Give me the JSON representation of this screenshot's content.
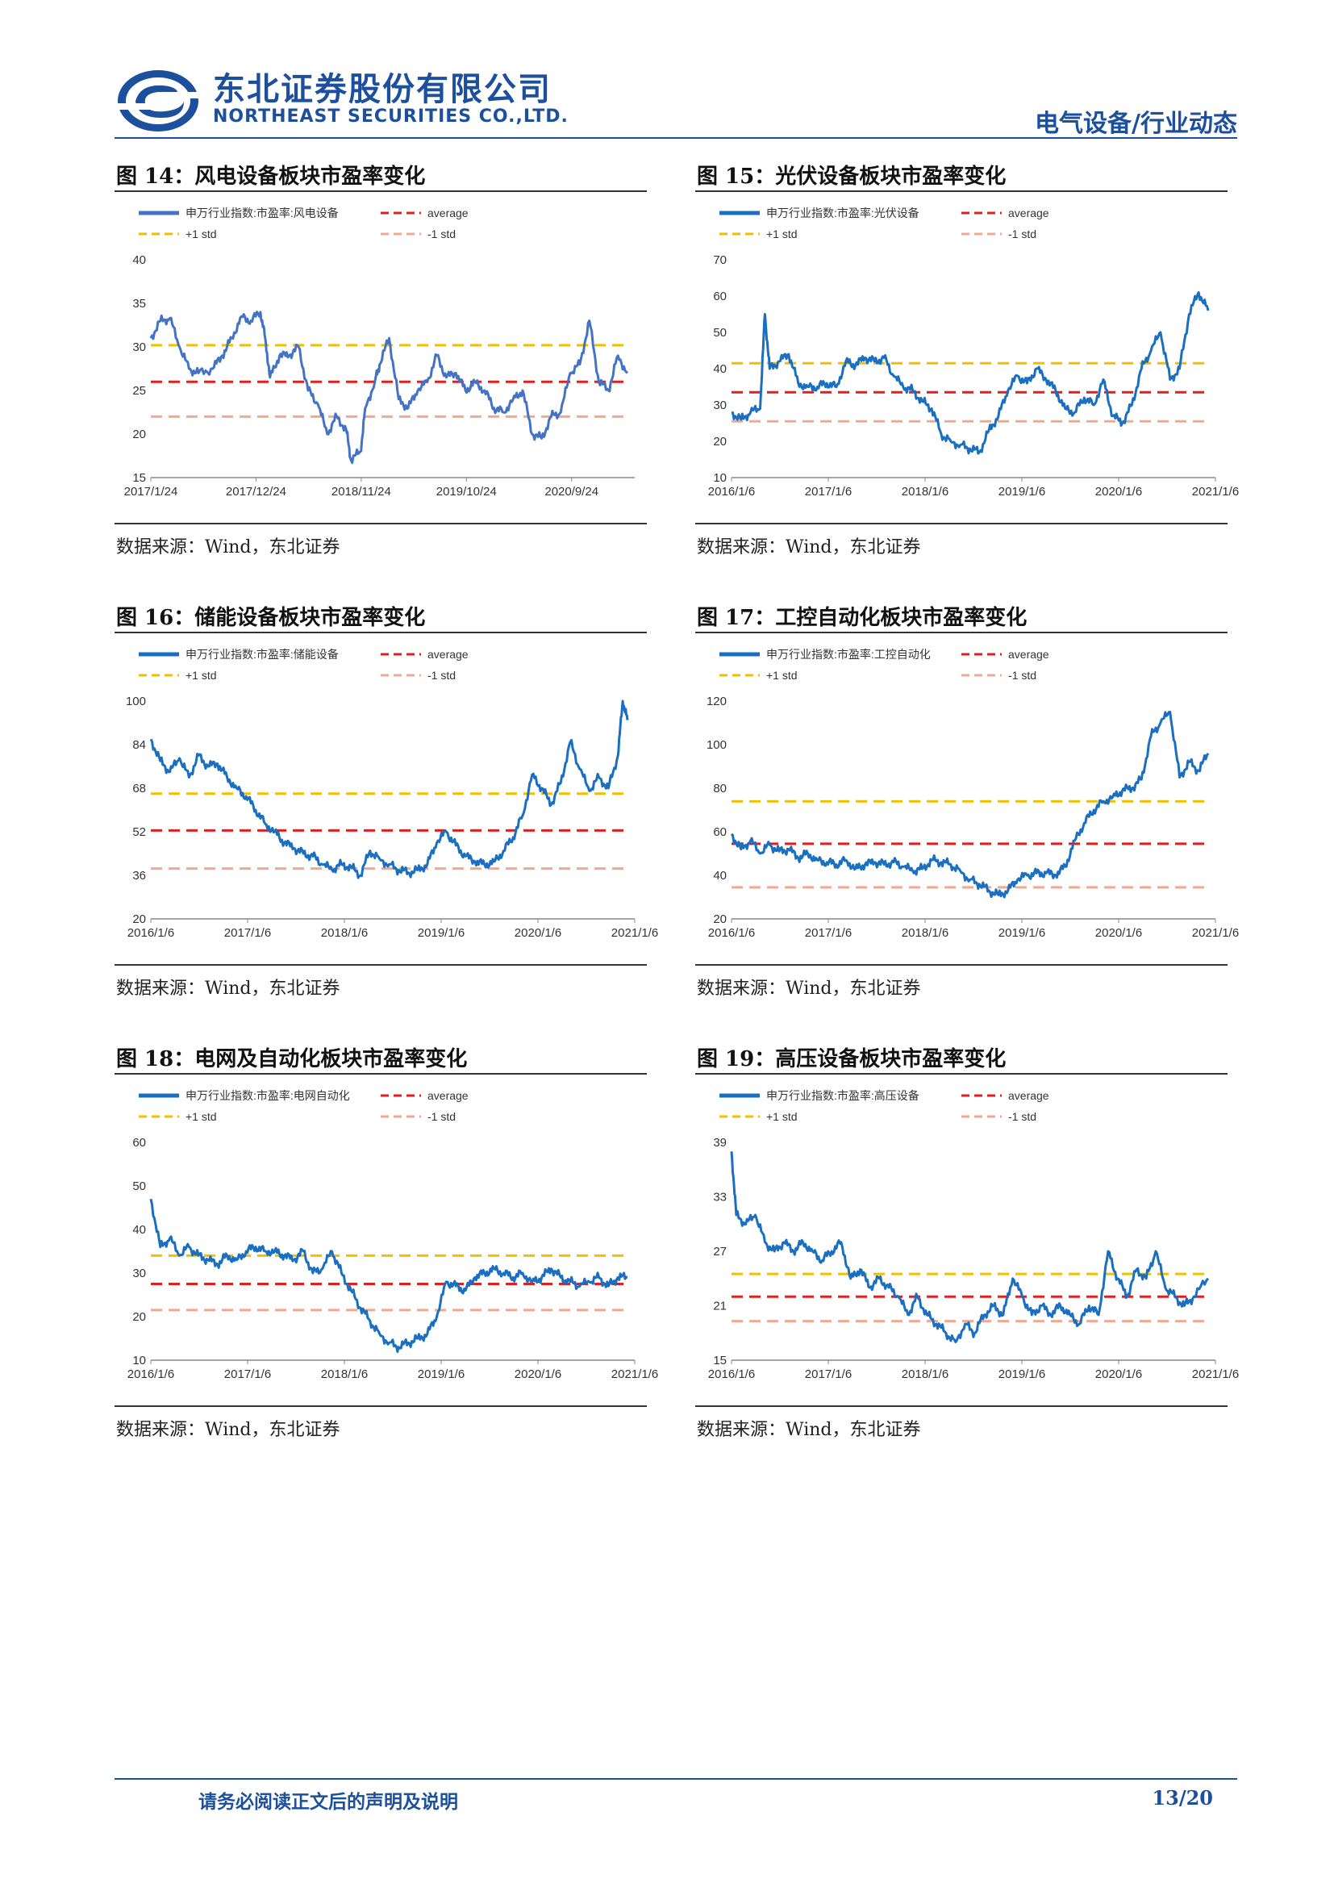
{
  "header": {
    "company_cn": "东北证券股份有限公司",
    "company_en": "NORTHEAST SECURITIES CO.,LTD.",
    "category": "电气设备/行业动态"
  },
  "footer": {
    "disclaimer": "请务必阅读正文后的声明及说明",
    "page": "13/20"
  },
  "colors": {
    "series": "#1a6fc0",
    "series14": "#4472c4",
    "plus_std": "#f0c000",
    "average": "#e02020",
    "minus_std": "#f0a890",
    "brand": "#1c4f9c"
  },
  "figures": [
    {
      "title": "图 14：风电设备板块市盈率变化",
      "source": "数据来源：Wind，东北证券"
    },
    {
      "title": "图 15：光伏设备板块市盈率变化",
      "source": "数据来源：Wind，东北证券"
    },
    {
      "title": "图 16：储能设备板块市盈率变化",
      "source": "数据来源：Wind，东北证券"
    },
    {
      "title": "图 17：工控自动化板块市盈率变化",
      "source": "数据来源：Wind，东北证券"
    },
    {
      "title": "图 18：电网及自动化板块市盈率变化",
      "source": "数据来源：Wind，东北证券"
    },
    {
      "title": "图 19：高压设备板块市盈率变化",
      "source": "数据来源：Wind，东北证券"
    }
  ],
  "chart_data": [
    {
      "type": "line",
      "legend": {
        "series": "申万行业指数:市盈率:风电设备",
        "average": "average",
        "plus_std": "+1 std",
        "minus_std": "-1 std"
      },
      "x_ticks": [
        "2017/1/24",
        "2017/12/24",
        "2018/11/24",
        "2019/10/24",
        "2020/9/24"
      ],
      "y_ticks": [
        "40",
        "35",
        "30",
        "25",
        "20",
        "15"
      ],
      "ylim": [
        15,
        40
      ],
      "average": 26,
      "plus_std": 30.2,
      "minus_std": 22,
      "series_points": [
        [
          0,
          31
        ],
        [
          0.02,
          33
        ],
        [
          0.04,
          33.3
        ],
        [
          0.06,
          30
        ],
        [
          0.08,
          27.5
        ],
        [
          0.1,
          27
        ],
        [
          0.13,
          27.5
        ],
        [
          0.15,
          29
        ],
        [
          0.17,
          31
        ],
        [
          0.19,
          33.5
        ],
        [
          0.21,
          33
        ],
        [
          0.23,
          34
        ],
        [
          0.24,
          31
        ],
        [
          0.25,
          26.5
        ],
        [
          0.27,
          29
        ],
        [
          0.29,
          29
        ],
        [
          0.31,
          30
        ],
        [
          0.33,
          25
        ],
        [
          0.35,
          23.5
        ],
        [
          0.37,
          20
        ],
        [
          0.39,
          22
        ],
        [
          0.41,
          20.5
        ],
        [
          0.42,
          17
        ],
        [
          0.44,
          18
        ],
        [
          0.45,
          23
        ],
        [
          0.47,
          26
        ],
        [
          0.48,
          28
        ],
        [
          0.5,
          31
        ],
        [
          0.52,
          24
        ],
        [
          0.54,
          23
        ],
        [
          0.56,
          25
        ],
        [
          0.58,
          26
        ],
        [
          0.6,
          29
        ],
        [
          0.62,
          26.5
        ],
        [
          0.64,
          27
        ],
        [
          0.66,
          25
        ],
        [
          0.68,
          26
        ],
        [
          0.7,
          25
        ],
        [
          0.72,
          23
        ],
        [
          0.74,
          22.5
        ],
        [
          0.76,
          24
        ],
        [
          0.78,
          25
        ],
        [
          0.8,
          20
        ],
        [
          0.82,
          19.5
        ],
        [
          0.84,
          22
        ],
        [
          0.86,
          22.5
        ],
        [
          0.88,
          27
        ],
        [
          0.9,
          28
        ],
        [
          0.92,
          33
        ],
        [
          0.94,
          26
        ],
        [
          0.96,
          25
        ],
        [
          0.98,
          29
        ],
        [
          1,
          27
        ]
      ]
    },
    {
      "type": "line",
      "legend": {
        "series": "申万行业指数:市盈率:光伏设备",
        "average": "average",
        "plus_std": "+1 std",
        "minus_std": "-1 std"
      },
      "x_ticks": [
        "2016/1/6",
        "2017/1/6",
        "2018/1/6",
        "2019/1/6",
        "2020/1/6",
        "2021/1/6"
      ],
      "y_ticks": [
        "70",
        "60",
        "50",
        "40",
        "30",
        "20",
        "10"
      ],
      "ylim": [
        10,
        70
      ],
      "average": 33.5,
      "plus_std": 41.5,
      "minus_std": 25.5,
      "series_points": [
        [
          0,
          28
        ],
        [
          0.02,
          26
        ],
        [
          0.04,
          28
        ],
        [
          0.06,
          29
        ],
        [
          0.07,
          55
        ],
        [
          0.08,
          40
        ],
        [
          0.1,
          42
        ],
        [
          0.12,
          44
        ],
        [
          0.14,
          36
        ],
        [
          0.16,
          35
        ],
        [
          0.18,
          35
        ],
        [
          0.2,
          36
        ],
        [
          0.22,
          35
        ],
        [
          0.24,
          42
        ],
        [
          0.26,
          41
        ],
        [
          0.28,
          43
        ],
        [
          0.3,
          42
        ],
        [
          0.32,
          43
        ],
        [
          0.34,
          38
        ],
        [
          0.36,
          35
        ],
        [
          0.38,
          34
        ],
        [
          0.4,
          31
        ],
        [
          0.42,
          29
        ],
        [
          0.44,
          22
        ],
        [
          0.46,
          20
        ],
        [
          0.48,
          19
        ],
        [
          0.5,
          18
        ],
        [
          0.52,
          17
        ],
        [
          0.54,
          23
        ],
        [
          0.56,
          27
        ],
        [
          0.58,
          34
        ],
        [
          0.6,
          38
        ],
        [
          0.62,
          36
        ],
        [
          0.64,
          40
        ],
        [
          0.66,
          37
        ],
        [
          0.68,
          34
        ],
        [
          0.7,
          29
        ],
        [
          0.72,
          28
        ],
        [
          0.74,
          32
        ],
        [
          0.76,
          30
        ],
        [
          0.78,
          37
        ],
        [
          0.8,
          27
        ],
        [
          0.82,
          25
        ],
        [
          0.84,
          30
        ],
        [
          0.86,
          40
        ],
        [
          0.88,
          45
        ],
        [
          0.9,
          50
        ],
        [
          0.92,
          37
        ],
        [
          0.94,
          40
        ],
        [
          0.96,
          55
        ],
        [
          0.98,
          61
        ],
        [
          1,
          56
        ]
      ]
    },
    {
      "type": "line",
      "legend": {
        "series": "申万行业指数:市盈率:储能设备",
        "average": "average",
        "plus_std": "+1 std",
        "minus_std": "-1 std"
      },
      "x_ticks": [
        "2016/1/6",
        "2017/1/6",
        "2018/1/6",
        "2019/1/6",
        "2020/1/6",
        "2021/1/6"
      ],
      "y_ticks": [
        "100",
        "84",
        "68",
        "52",
        "36",
        "20"
      ],
      "ylim": [
        20,
        100
      ],
      "average": 52.5,
      "plus_std": 66,
      "minus_std": 38.5,
      "series_points": [
        [
          0,
          86
        ],
        [
          0.02,
          78
        ],
        [
          0.04,
          74
        ],
        [
          0.06,
          79
        ],
        [
          0.08,
          72
        ],
        [
          0.1,
          80
        ],
        [
          0.12,
          76
        ],
        [
          0.14,
          77
        ],
        [
          0.16,
          72
        ],
        [
          0.18,
          68
        ],
        [
          0.2,
          65
        ],
        [
          0.22,
          60
        ],
        [
          0.24,
          55
        ],
        [
          0.26,
          52
        ],
        [
          0.28,
          48
        ],
        [
          0.3,
          46
        ],
        [
          0.32,
          44
        ],
        [
          0.34,
          43
        ],
        [
          0.36,
          40
        ],
        [
          0.38,
          38
        ],
        [
          0.4,
          40
        ],
        [
          0.42,
          39
        ],
        [
          0.44,
          36
        ],
        [
          0.46,
          45
        ],
        [
          0.48,
          42
        ],
        [
          0.5,
          40
        ],
        [
          0.52,
          38
        ],
        [
          0.54,
          37
        ],
        [
          0.56,
          38
        ],
        [
          0.58,
          40
        ],
        [
          0.6,
          48
        ],
        [
          0.62,
          52
        ],
        [
          0.64,
          47
        ],
        [
          0.66,
          43
        ],
        [
          0.68,
          41
        ],
        [
          0.7,
          40
        ],
        [
          0.72,
          41
        ],
        [
          0.74,
          45
        ],
        [
          0.76,
          50
        ],
        [
          0.78,
          58
        ],
        [
          0.8,
          73
        ],
        [
          0.82,
          68
        ],
        [
          0.84,
          62
        ],
        [
          0.86,
          70
        ],
        [
          0.88,
          85
        ],
        [
          0.9,
          75
        ],
        [
          0.92,
          67
        ],
        [
          0.94,
          72
        ],
        [
          0.96,
          68
        ],
        [
          0.98,
          80
        ],
        [
          0.99,
          100
        ],
        [
          1,
          93
        ]
      ]
    },
    {
      "type": "line",
      "legend": {
        "series": "申万行业指数:市盈率:工控自动化",
        "average": "average",
        "plus_std": "+1 std",
        "minus_std": "-1 std"
      },
      "x_ticks": [
        "2016/1/6",
        "2017/1/6",
        "2018/1/6",
        "2019/1/6",
        "2020/1/6",
        "2021/1/6"
      ],
      "y_ticks": [
        "120",
        "100",
        "80",
        "60",
        "40",
        "20"
      ],
      "ylim": [
        20,
        120
      ],
      "average": 54.5,
      "plus_std": 74,
      "minus_std": 34.5,
      "series_points": [
        [
          0,
          59
        ],
        [
          0.02,
          52
        ],
        [
          0.04,
          56
        ],
        [
          0.06,
          50
        ],
        [
          0.08,
          54
        ],
        [
          0.1,
          51
        ],
        [
          0.12,
          52
        ],
        [
          0.14,
          48
        ],
        [
          0.16,
          50
        ],
        [
          0.18,
          47
        ],
        [
          0.2,
          46
        ],
        [
          0.22,
          45
        ],
        [
          0.24,
          47
        ],
        [
          0.26,
          43
        ],
        [
          0.28,
          45
        ],
        [
          0.3,
          46
        ],
        [
          0.32,
          45
        ],
        [
          0.34,
          46
        ],
        [
          0.36,
          44
        ],
        [
          0.38,
          42
        ],
        [
          0.4,
          43
        ],
        [
          0.42,
          47
        ],
        [
          0.44,
          46
        ],
        [
          0.46,
          45
        ],
        [
          0.48,
          42
        ],
        [
          0.5,
          38
        ],
        [
          0.52,
          36
        ],
        [
          0.54,
          33
        ],
        [
          0.56,
          31
        ],
        [
          0.58,
          33
        ],
        [
          0.6,
          38
        ],
        [
          0.62,
          40
        ],
        [
          0.64,
          41
        ],
        [
          0.66,
          41
        ],
        [
          0.68,
          40
        ],
        [
          0.7,
          44
        ],
        [
          0.72,
          56
        ],
        [
          0.74,
          64
        ],
        [
          0.76,
          70
        ],
        [
          0.78,
          74
        ],
        [
          0.8,
          76
        ],
        [
          0.82,
          79
        ],
        [
          0.84,
          80
        ],
        [
          0.86,
          84
        ],
        [
          0.88,
          104
        ],
        [
          0.9,
          110
        ],
        [
          0.92,
          115
        ],
        [
          0.94,
          85
        ],
        [
          0.96,
          92
        ],
        [
          0.98,
          88
        ],
        [
          1,
          96
        ]
      ]
    },
    {
      "type": "line",
      "legend": {
        "series": "申万行业指数:市盈率:电网自动化",
        "average": "average",
        "plus_std": "+1 std",
        "minus_std": "-1 std"
      },
      "x_ticks": [
        "2016/1/6",
        "2017/1/6",
        "2018/1/6",
        "2019/1/6",
        "2020/1/6",
        "2021/1/6"
      ],
      "y_ticks": [
        "60",
        "50",
        "40",
        "30",
        "20",
        "10"
      ],
      "ylim": [
        10,
        60
      ],
      "average": 27.5,
      "plus_std": 34,
      "minus_std": 21.5,
      "series_points": [
        [
          0,
          47
        ],
        [
          0.02,
          36
        ],
        [
          0.04,
          38
        ],
        [
          0.06,
          34
        ],
        [
          0.08,
          36
        ],
        [
          0.1,
          34
        ],
        [
          0.12,
          33
        ],
        [
          0.14,
          32
        ],
        [
          0.16,
          34
        ],
        [
          0.18,
          33
        ],
        [
          0.2,
          35
        ],
        [
          0.22,
          36
        ],
        [
          0.24,
          35
        ],
        [
          0.26,
          35
        ],
        [
          0.28,
          34
        ],
        [
          0.3,
          33
        ],
        [
          0.32,
          35
        ],
        [
          0.34,
          30
        ],
        [
          0.36,
          31
        ],
        [
          0.38,
          35
        ],
        [
          0.4,
          30
        ],
        [
          0.42,
          26
        ],
        [
          0.44,
          22
        ],
        [
          0.46,
          19
        ],
        [
          0.48,
          16
        ],
        [
          0.5,
          14
        ],
        [
          0.52,
          13
        ],
        [
          0.54,
          14
        ],
        [
          0.56,
          15
        ],
        [
          0.58,
          16
        ],
        [
          0.6,
          20
        ],
        [
          0.62,
          28
        ],
        [
          0.64,
          27
        ],
        [
          0.66,
          26
        ],
        [
          0.68,
          29
        ],
        [
          0.7,
          30
        ],
        [
          0.72,
          31
        ],
        [
          0.74,
          30
        ],
        [
          0.76,
          29
        ],
        [
          0.78,
          30
        ],
        [
          0.8,
          28
        ],
        [
          0.82,
          29
        ],
        [
          0.84,
          31
        ],
        [
          0.86,
          29
        ],
        [
          0.88,
          28
        ],
        [
          0.9,
          27
        ],
        [
          0.92,
          28
        ],
        [
          0.94,
          29
        ],
        [
          0.96,
          27
        ],
        [
          0.98,
          29
        ],
        [
          1,
          29
        ]
      ]
    },
    {
      "type": "line",
      "legend": {
        "series": "申万行业指数:市盈率:高压设备",
        "average": "average",
        "plus_std": "+1 std",
        "minus_std": "-1 std"
      },
      "x_ticks": [
        "2016/1/6",
        "2017/1/6",
        "2018/1/6",
        "2019/1/6",
        "2020/1/6",
        "2021/1/6"
      ],
      "y_ticks": [
        "39",
        "33",
        "27",
        "21",
        "15"
      ],
      "ylim": [
        15,
        39
      ],
      "average": 22,
      "plus_std": 24.5,
      "minus_std": 19.3,
      "series_points": [
        [
          0,
          38
        ],
        [
          0.01,
          31
        ],
        [
          0.03,
          30
        ],
        [
          0.05,
          31
        ],
        [
          0.07,
          28
        ],
        [
          0.09,
          27
        ],
        [
          0.11,
          28
        ],
        [
          0.13,
          27
        ],
        [
          0.15,
          28
        ],
        [
          0.17,
          27
        ],
        [
          0.19,
          26
        ],
        [
          0.21,
          27
        ],
        [
          0.23,
          28
        ],
        [
          0.25,
          24
        ],
        [
          0.27,
          25
        ],
        [
          0.29,
          23
        ],
        [
          0.31,
          24
        ],
        [
          0.33,
          23
        ],
        [
          0.35,
          22
        ],
        [
          0.37,
          20
        ],
        [
          0.39,
          22
        ],
        [
          0.41,
          20
        ],
        [
          0.43,
          19
        ],
        [
          0.45,
          18
        ],
        [
          0.47,
          17
        ],
        [
          0.49,
          19
        ],
        [
          0.51,
          18
        ],
        [
          0.53,
          20
        ],
        [
          0.55,
          21
        ],
        [
          0.57,
          20
        ],
        [
          0.59,
          24
        ],
        [
          0.61,
          22
        ],
        [
          0.63,
          20
        ],
        [
          0.65,
          21
        ],
        [
          0.67,
          20
        ],
        [
          0.69,
          21
        ],
        [
          0.71,
          20
        ],
        [
          0.73,
          19
        ],
        [
          0.75,
          21
        ],
        [
          0.77,
          20
        ],
        [
          0.79,
          27
        ],
        [
          0.81,
          24
        ],
        [
          0.83,
          22
        ],
        [
          0.85,
          25
        ],
        [
          0.87,
          24
        ],
        [
          0.89,
          27
        ],
        [
          0.91,
          23
        ],
        [
          0.93,
          22
        ],
        [
          0.95,
          21
        ],
        [
          0.97,
          22
        ],
        [
          1,
          24
        ]
      ]
    }
  ]
}
